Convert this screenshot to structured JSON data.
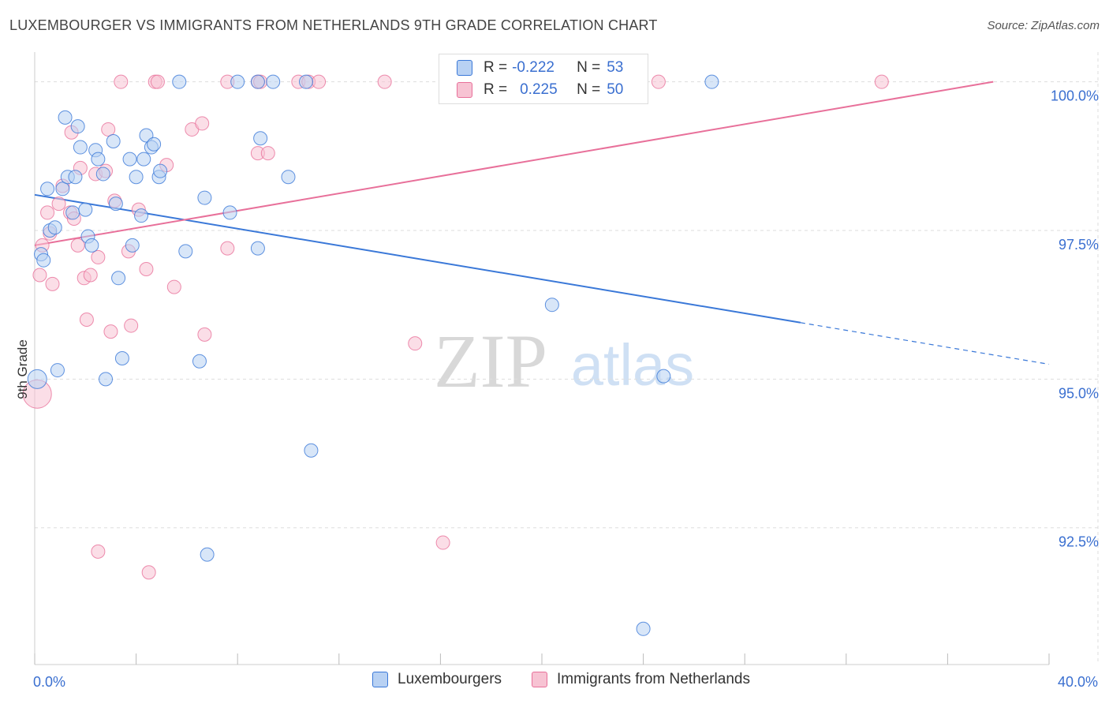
{
  "title": "LUXEMBOURGER VS IMMIGRANTS FROM NETHERLANDS 9TH GRADE CORRELATION CHART",
  "source": "Source: ZipAtlas.com",
  "watermark": {
    "zip": "ZIP",
    "atlas": "atlas"
  },
  "colors": {
    "blue": "#3a78d8",
    "blue_fill": "#b8d1f3",
    "pink": "#e8709a",
    "pink_fill": "#f7c3d3",
    "axis_text": "#3a6fd0",
    "grid": "#dddddd"
  },
  "legend": {
    "series1": {
      "r_label": "R =",
      "r_value": "-0.222",
      "n_label": "N =",
      "n_value": "53"
    },
    "series2": {
      "r_label": "R =",
      "r_value": "0.225",
      "n_label": "N =",
      "n_value": "50"
    }
  },
  "bottom_legend": {
    "series1": "Luxembourgers",
    "series2": "Immigrants from Netherlands"
  },
  "chart_data": {
    "type": "scatter",
    "ylabel": "9th Grade",
    "xlim": [
      0,
      40
    ],
    "ylim": [
      90.2,
      100.5
    ],
    "x_tick_labels": [
      {
        "value": 0,
        "label": "0.0%"
      },
      {
        "value": 40,
        "label": "40.0%"
      }
    ],
    "y_tick_labels": [
      {
        "value": 100,
        "label": "100.0%"
      },
      {
        "value": 97.5,
        "label": "97.5%"
      },
      {
        "value": 95,
        "label": "95.0%"
      },
      {
        "value": 92.5,
        "label": "92.5%"
      }
    ],
    "series": [
      {
        "name": "Luxembourgers",
        "r": -0.222,
        "n": 53,
        "trend": {
          "x0": 0,
          "y0": 98.1,
          "x1": 30.2,
          "y1": 95.95,
          "dash_to_x": 40,
          "dash_to_y": 95.25
        },
        "points": [
          [
            0.1,
            95.0
          ],
          [
            0.25,
            97.1
          ],
          [
            0.35,
            97.0
          ],
          [
            0.5,
            98.2
          ],
          [
            0.6,
            97.5
          ],
          [
            0.8,
            97.55
          ],
          [
            0.9,
            95.15
          ],
          [
            1.1,
            98.2
          ],
          [
            1.2,
            99.4
          ],
          [
            1.3,
            98.4
          ],
          [
            1.5,
            97.8
          ],
          [
            1.6,
            98.4
          ],
          [
            1.7,
            99.25
          ],
          [
            1.8,
            98.9
          ],
          [
            2.0,
            97.85
          ],
          [
            2.1,
            97.4
          ],
          [
            2.25,
            97.25
          ],
          [
            2.4,
            98.85
          ],
          [
            2.5,
            98.7
          ],
          [
            2.7,
            98.45
          ],
          [
            2.8,
            95.0
          ],
          [
            3.1,
            99.0
          ],
          [
            3.2,
            97.95
          ],
          [
            3.3,
            96.7
          ],
          [
            3.45,
            95.35
          ],
          [
            3.75,
            98.7
          ],
          [
            3.85,
            97.25
          ],
          [
            4.0,
            98.4
          ],
          [
            4.2,
            97.75
          ],
          [
            4.3,
            98.7
          ],
          [
            4.4,
            99.1
          ],
          [
            4.6,
            98.9
          ],
          [
            4.7,
            98.95
          ],
          [
            4.9,
            98.4
          ],
          [
            4.95,
            98.5
          ],
          [
            5.7,
            100.0
          ],
          [
            5.95,
            97.15
          ],
          [
            6.5,
            95.3
          ],
          [
            6.7,
            98.05
          ],
          [
            6.8,
            92.05
          ],
          [
            7.7,
            97.8
          ],
          [
            8.0,
            100.0
          ],
          [
            8.8,
            100.0
          ],
          [
            8.8,
            97.2
          ],
          [
            8.9,
            99.05
          ],
          [
            9.4,
            100.0
          ],
          [
            10.0,
            98.4
          ],
          [
            10.7,
            100.0
          ],
          [
            10.9,
            93.8
          ],
          [
            20.4,
            96.25
          ],
          [
            24.0,
            90.8
          ],
          [
            24.8,
            95.05
          ],
          [
            26.7,
            100.0
          ]
        ]
      },
      {
        "name": "Immigrants from Netherlands",
        "r": 0.225,
        "n": 50,
        "trend": {
          "x0": 0,
          "y0": 97.25,
          "x1": 37.8,
          "y1": 100.0
        },
        "points": [
          [
            0.1,
            94.75
          ],
          [
            0.2,
            96.75
          ],
          [
            0.3,
            97.25
          ],
          [
            0.5,
            97.8
          ],
          [
            0.6,
            97.45
          ],
          [
            0.7,
            96.6
          ],
          [
            0.95,
            97.95
          ],
          [
            1.1,
            98.25
          ],
          [
            1.4,
            97.8
          ],
          [
            1.45,
            99.15
          ],
          [
            1.55,
            97.7
          ],
          [
            1.7,
            97.25
          ],
          [
            1.8,
            98.55
          ],
          [
            1.95,
            96.7
          ],
          [
            2.05,
            96.0
          ],
          [
            2.2,
            96.75
          ],
          [
            2.4,
            98.45
          ],
          [
            2.5,
            97.05
          ],
          [
            2.5,
            92.1
          ],
          [
            2.8,
            98.5
          ],
          [
            2.9,
            99.2
          ],
          [
            3.0,
            95.8
          ],
          [
            3.15,
            98.0
          ],
          [
            3.4,
            100.0
          ],
          [
            3.7,
            97.15
          ],
          [
            3.8,
            95.9
          ],
          [
            4.1,
            97.85
          ],
          [
            4.4,
            96.85
          ],
          [
            4.5,
            91.75
          ],
          [
            4.75,
            100.0
          ],
          [
            4.85,
            100.0
          ],
          [
            5.2,
            98.6
          ],
          [
            5.5,
            96.55
          ],
          [
            6.2,
            99.2
          ],
          [
            6.6,
            99.3
          ],
          [
            6.7,
            95.75
          ],
          [
            7.6,
            97.2
          ],
          [
            7.6,
            100.0
          ],
          [
            8.8,
            100.0
          ],
          [
            8.9,
            100.0
          ],
          [
            8.8,
            98.8
          ],
          [
            9.2,
            98.8
          ],
          [
            10.4,
            100.0
          ],
          [
            10.8,
            100.0
          ],
          [
            11.2,
            100.0
          ],
          [
            13.8,
            100.0
          ],
          [
            15.0,
            95.6
          ],
          [
            16.1,
            92.25
          ],
          [
            24.6,
            100.0
          ],
          [
            33.4,
            100.0
          ]
        ]
      }
    ]
  }
}
